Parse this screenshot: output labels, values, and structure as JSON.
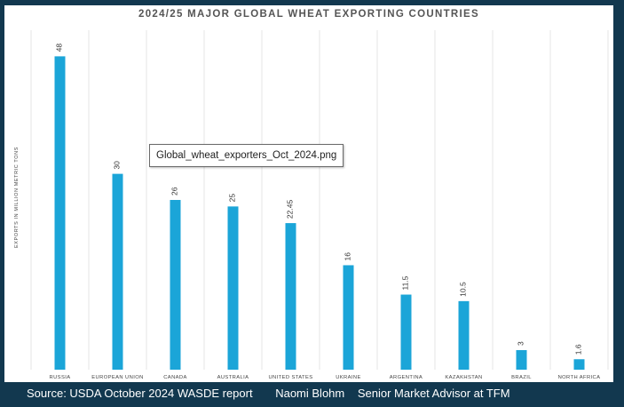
{
  "colors": {
    "bar": "#1ba5d8",
    "background": "#12384f",
    "panel": "#ffffff",
    "grid": "#e4e4e4"
  },
  "tooltip": {
    "filename": "Global_wheat_exporters_Oct_2024.png"
  },
  "footer": {
    "source": "Source: USDA October 2024 WASDE report",
    "author": "Naomi Blohm",
    "role": "Senior Market Advisor at TFM"
  },
  "chart_data": {
    "type": "bar",
    "title": "2024/25 MAJOR GLOBAL WHEAT EXPORTING COUNTRIES",
    "ylabel": "EXPORTS IN MILLION METRIC TONS",
    "xlabel": "",
    "categories": [
      "RUSSIA",
      "EUROPEAN UNION",
      "CANADA",
      "AUSTRALIA",
      "UNITED STATES",
      "UKRAINE",
      "ARGENTINA",
      "KAZAKHSTAN",
      "BRAZIL",
      "NORTH AFRICA"
    ],
    "values": [
      48,
      30,
      26,
      25,
      22.45,
      16,
      11.5,
      10.5,
      3,
      1.6
    ],
    "value_labels": [
      "48",
      "30",
      "26",
      "25",
      "22.45",
      "16",
      "11.5",
      "10.5",
      "3",
      "1.6"
    ],
    "ylim": [
      0,
      52
    ],
    "grid": "vertical separators",
    "legend": "none",
    "data_labels": "rotated above bars"
  }
}
